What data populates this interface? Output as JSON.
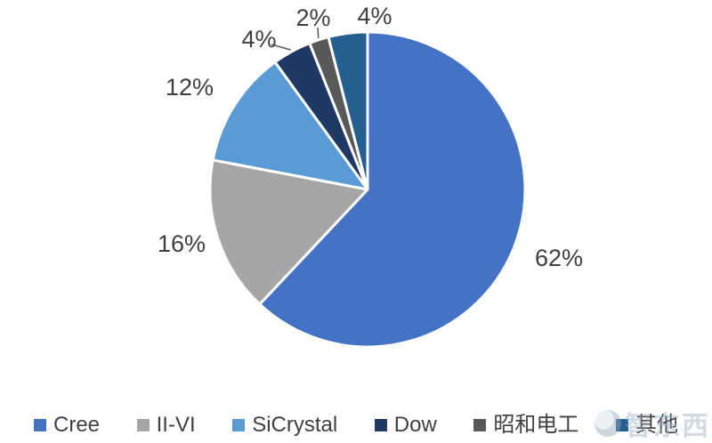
{
  "chart_data": {
    "type": "pie",
    "title": "",
    "categories": [
      "Cree",
      "II-VI",
      "SiCrystal",
      "Dow",
      "昭和电工",
      "其他"
    ],
    "values": [
      62,
      16,
      12,
      4,
      2,
      4
    ],
    "labels": [
      "62%",
      "16%",
      "12%",
      "4%",
      "2%",
      "4%"
    ],
    "colors": [
      "#4472C4",
      "#A6A6A6",
      "#5B9BD5",
      "#1F3864",
      "#595959",
      "#255E91"
    ],
    "legend_position": "bottom",
    "start_angle_deg": 0,
    "direction": "clockwise",
    "slice_border_color": "#FFFFFF"
  },
  "watermark": {
    "text": "智东西"
  }
}
